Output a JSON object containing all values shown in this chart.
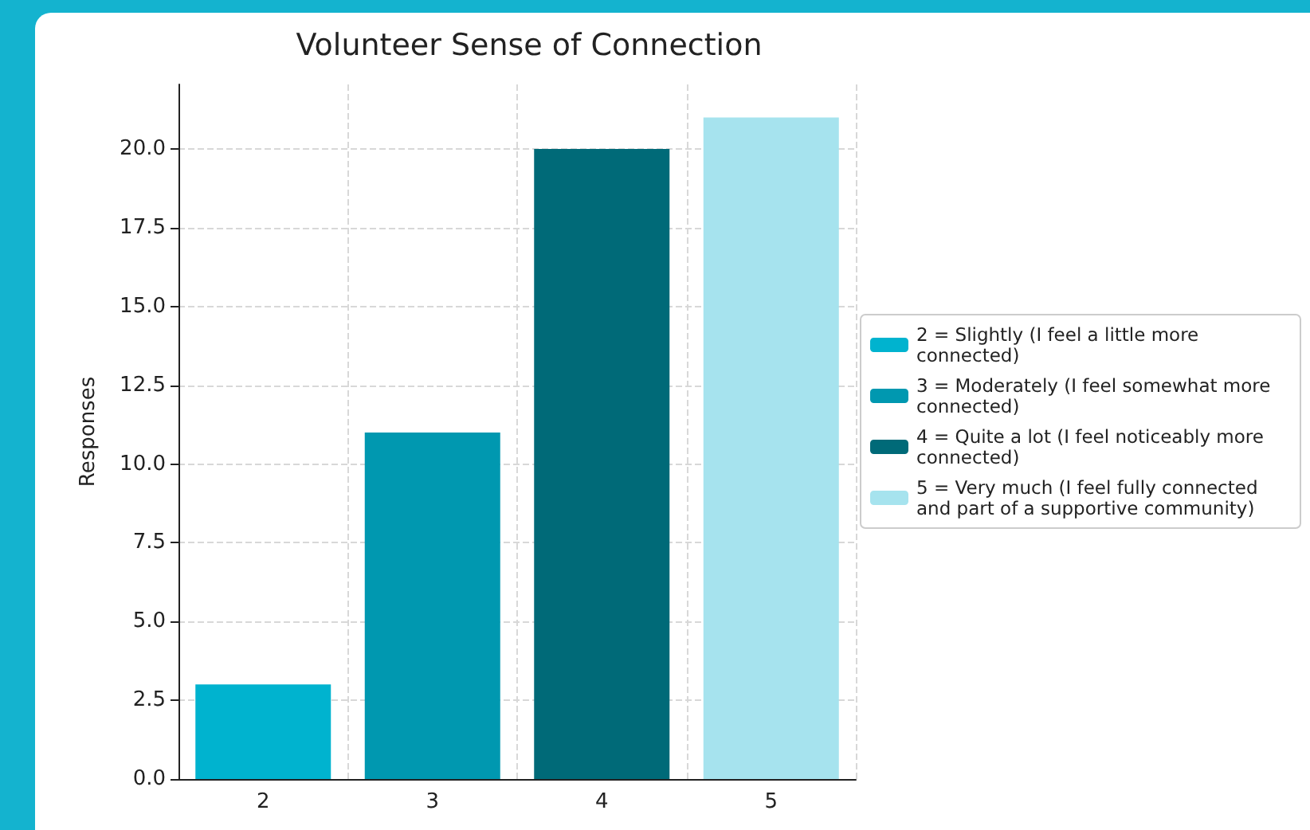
{
  "chart_data": {
    "type": "bar",
    "title": "Volunteer Sense of Connection",
    "ylabel": "Responses",
    "categories": [
      "2",
      "3",
      "4",
      "5"
    ],
    "series": [
      {
        "name": "2 = Slightly (I feel a little more connected)",
        "color": "#00b3cf",
        "values": [
          3,
          null,
          null,
          null
        ]
      },
      {
        "name": "3 = Moderately (I feel somewhat more connected)",
        "color": "#0098b0",
        "values": [
          null,
          11,
          null,
          null
        ]
      },
      {
        "name": "4 = Quite a lot (I feel noticeably more connected)",
        "color": "#006a78",
        "values": [
          null,
          null,
          20,
          null
        ]
      },
      {
        "name": "5 = Very much (I feel fully connected and part of a supportive community)",
        "color": "#a6e3ee",
        "values": [
          null,
          null,
          null,
          21
        ]
      }
    ],
    "ylim": [
      0,
      22.05
    ],
    "yticks": [
      {
        "value": 0,
        "label": "0.0"
      },
      2.5,
      {
        "value": 5,
        "label": "5.0"
      },
      7.5,
      {
        "value": 10,
        "label": "10.0"
      },
      12.5,
      {
        "value": 15,
        "label": "15.0"
      },
      17.5,
      {
        "value": 20,
        "label": "20.0"
      }
    ],
    "grid": true,
    "legend": "right"
  }
}
